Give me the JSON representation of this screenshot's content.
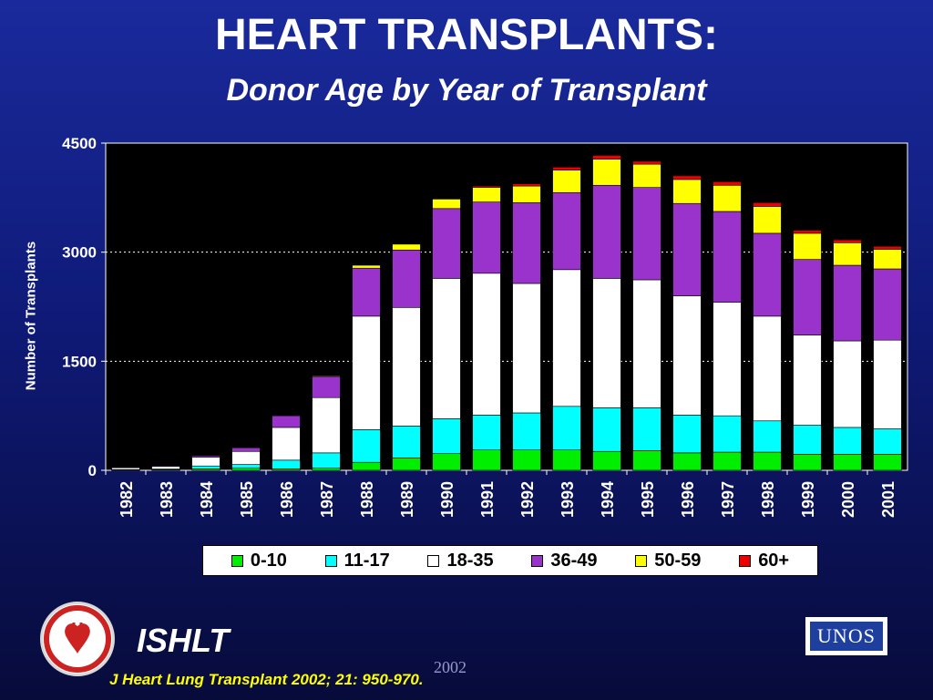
{
  "slide": {
    "title": "HEART TRANSPLANTS:",
    "subtitle": "Donor Age by Year of Transplant",
    "ishlt_label": "ISHLT",
    "citation": "J Heart Lung Transplant 2002; 21: 950-970.",
    "year_mark": "2002",
    "unos_label": "UNOS"
  },
  "colors": {
    "0-10": "#00ee00",
    "11-17": "#00ffff",
    "18-35": "#ffffff",
    "36-49": "#9933cc",
    "50-59": "#ffff00",
    "60+": "#ee0000",
    "plot_bg": "#000000",
    "grid": "#ffffff"
  },
  "chart_data": {
    "type": "bar",
    "stacked": true,
    "title": "HEART TRANSPLANTS:",
    "subtitle": "Donor Age by Year of Transplant",
    "xlabel": "",
    "ylabel": "Number of Transplants",
    "ylim": [
      0,
      4500
    ],
    "yticks": [
      "0",
      "1500",
      "3000",
      "4500"
    ],
    "grid": "horizontal dotted",
    "legend_position": "bottom",
    "categories": [
      "1982",
      "1983",
      "1984",
      "1985",
      "1986",
      "1987",
      "1988",
      "1989",
      "1990",
      "1991",
      "1992",
      "1993",
      "1994",
      "1995",
      "1996",
      "1997",
      "1998",
      "1999",
      "2000",
      "2001"
    ],
    "series": [
      {
        "name": "0-10",
        "values": [
          5,
          8,
          20,
          30,
          20,
          30,
          110,
          170,
          230,
          280,
          280,
          280,
          260,
          270,
          240,
          250,
          250,
          220,
          220,
          220
        ]
      },
      {
        "name": "11-17",
        "values": [
          5,
          10,
          40,
          50,
          120,
          210,
          450,
          440,
          480,
          480,
          510,
          600,
          600,
          590,
          520,
          500,
          430,
          400,
          370,
          350
        ]
      },
      {
        "name": "18-35",
        "values": [
          25,
          35,
          120,
          180,
          450,
          760,
          1560,
          1630,
          1930,
          1950,
          1780,
          1880,
          1780,
          1760,
          1640,
          1560,
          1440,
          1240,
          1190,
          1220
        ]
      },
      {
        "name": "36-49",
        "values": [
          0,
          10,
          20,
          50,
          160,
          290,
          660,
          790,
          960,
          980,
          1110,
          1060,
          1280,
          1270,
          1270,
          1250,
          1140,
          1040,
          1040,
          980
        ]
      },
      {
        "name": "50-59",
        "values": [
          0,
          0,
          0,
          0,
          0,
          10,
          40,
          80,
          130,
          200,
          230,
          310,
          360,
          320,
          330,
          360,
          370,
          360,
          310,
          270
        ]
      },
      {
        "name": "60+",
        "values": [
          0,
          0,
          0,
          0,
          0,
          0,
          0,
          0,
          0,
          20,
          30,
          40,
          50,
          40,
          50,
          50,
          50,
          40,
          40,
          40
        ]
      }
    ]
  }
}
